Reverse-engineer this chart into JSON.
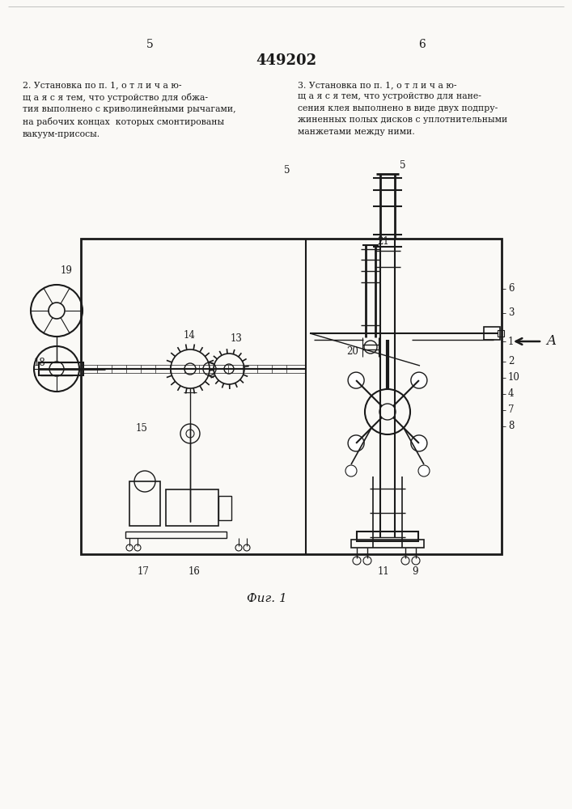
{
  "patent_number": "449202",
  "bg_color": "#faf9f6",
  "line_color": "#1a1a1a",
  "text_left": "2. Установка по п. 1, о т л и ч а ю-\nщ а я с я тем, что устройство для обжа-\nтия выполнено с криволинейными рычагами,\nна рабочих концах  которых смонтированы\nвакуум-присосы.",
  "text_right": "3. Установка по п. 1, о т л и ч а ю-\nщ а я с я тем, что устройство для нане-\nсения клея выполнено в виде двух подпру-\nжиненных полых дисков с уплотнительными\nманжетами между ними.",
  "figure_caption": "Фиг. 1",
  "page_left": "5",
  "page_right": "6",
  "col_num": "5"
}
